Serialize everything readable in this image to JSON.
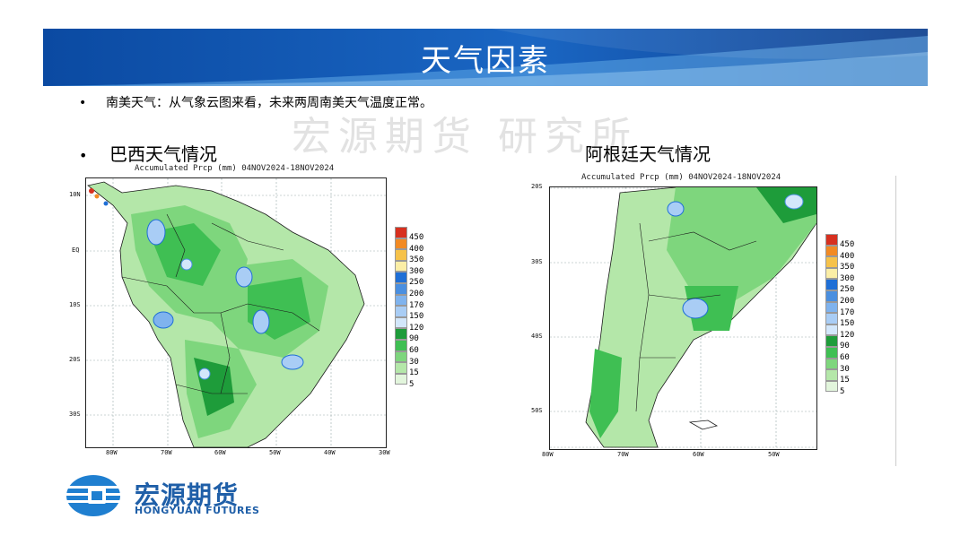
{
  "slide": {
    "title": "天气因素",
    "bullet_text": "南美天气：从气象云图来看，未来两周南美天气温度正常。",
    "bullet_symbol": "•",
    "watermark": "宏源期货 研究所",
    "colors": {
      "banner_dark": "#0b4aa2",
      "banner_light": "#5ea8e6",
      "brand": "#1f5fa8"
    }
  },
  "brazil": {
    "heading": "巴西天气情况",
    "caption": "Accumulated Prcp (mm) 04NOV2024-18NOV2024",
    "lat_ticks": [
      "10N",
      "EQ",
      "10S",
      "20S",
      "30S"
    ],
    "lon_ticks": [
      "80W",
      "70W",
      "60W",
      "50W",
      "40W",
      "30W"
    ]
  },
  "argentina": {
    "heading": "阿根廷天气情况",
    "caption": "Accumulated Prcp (mm) 04NOV2024-18NOV2024",
    "lat_ticks": [
      "20S",
      "30S",
      "40S",
      "50S"
    ],
    "lon_ticks": [
      "80W",
      "70W",
      "60W",
      "50W"
    ]
  },
  "legend": {
    "labels": [
      "450",
      "400",
      "350",
      "300",
      "250",
      "200",
      "170",
      "150",
      "120",
      "90",
      "60",
      "30",
      "15",
      "5"
    ],
    "colors": [
      "#d7301f",
      "#f28a23",
      "#f6c24a",
      "#fbeea6",
      "#1f6fd6",
      "#4a8fe0",
      "#7fb3ee",
      "#a9cdf5",
      "#d3e7fb",
      "#1e9c3a",
      "#3fbf53",
      "#7ed67d",
      "#b4e7a9",
      "#e2f5dc"
    ]
  },
  "logo": {
    "name_cn": "宏源期货",
    "name_en": "HONGYUAN FUTURES"
  }
}
